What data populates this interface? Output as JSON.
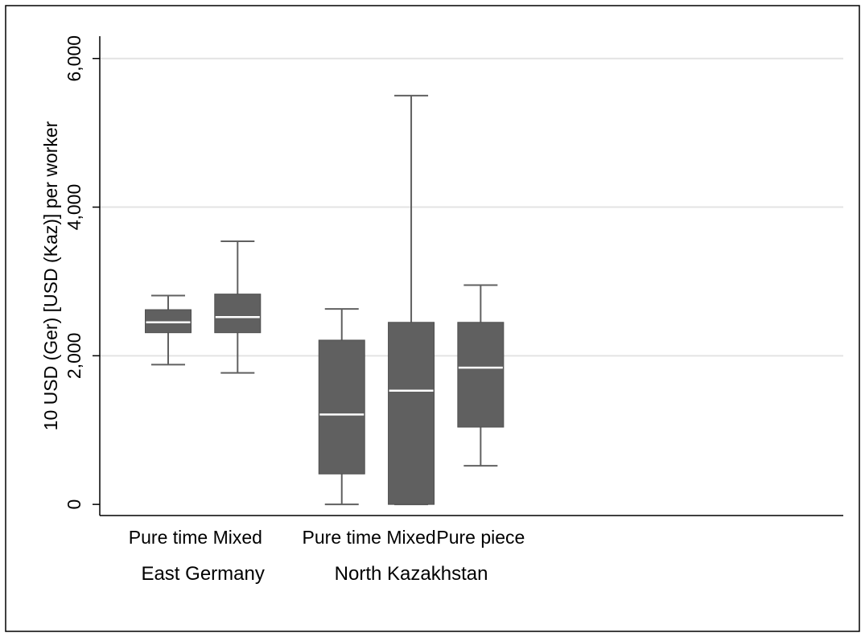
{
  "chart_data": {
    "type": "box",
    "ylabel": "10 USD (Ger) [USD (Kaz)] per worker",
    "xlabel": "",
    "ylim": [
      -150,
      6300
    ],
    "y_ticks": [
      0,
      2000,
      4000,
      6000
    ],
    "y_tick_labels": [
      "0",
      "2,000",
      "4,000",
      "6,000"
    ],
    "grid": true,
    "legend": "none",
    "box_color": "#606060",
    "median_color": "#ffffff",
    "groups": [
      {
        "name": "East Germany",
        "boxes": [
          {
            "label": "Pure time",
            "whisker_low": 1880,
            "q1": 2310,
            "median": 2450,
            "q3": 2620,
            "whisker_high": 2810
          },
          {
            "label": "Mixed",
            "whisker_low": 1770,
            "q1": 2310,
            "median": 2520,
            "q3": 2830,
            "whisker_high": 3540
          }
        ]
      },
      {
        "name": "North Kazakhstan",
        "boxes": [
          {
            "label": "Pure time",
            "whisker_low": 0,
            "q1": 410,
            "median": 1210,
            "q3": 2210,
            "whisker_high": 2630
          },
          {
            "label": "Mixed",
            "whisker_low": 0,
            "q1": 0,
            "median": 1530,
            "q3": 2450,
            "whisker_high": 5500
          },
          {
            "label": "Pure piece",
            "whisker_low": 520,
            "q1": 1040,
            "median": 1840,
            "q3": 2450,
            "whisker_high": 2950
          }
        ]
      }
    ]
  }
}
